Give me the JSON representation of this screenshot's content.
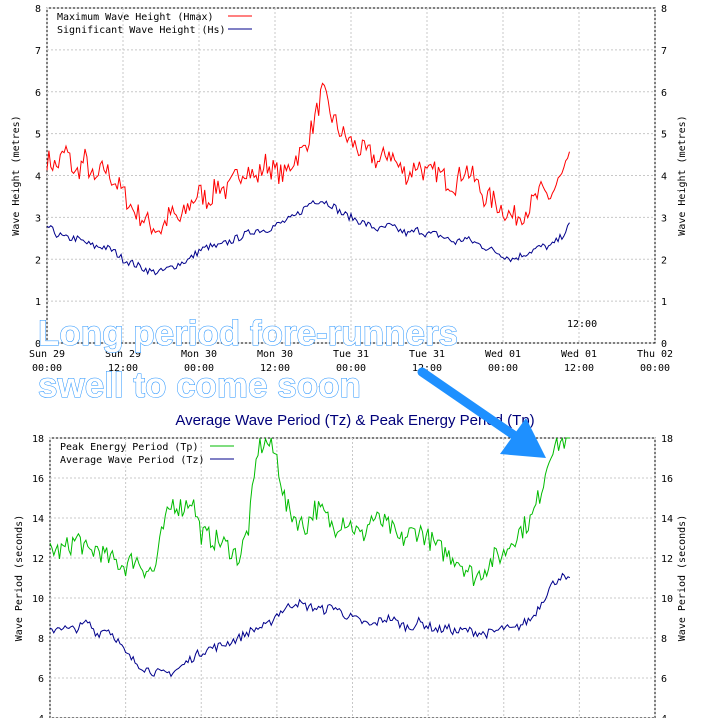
{
  "chart_data": [
    {
      "type": "line",
      "ylabel": "Wave Height (metres)",
      "ylabel_right": "Wave Height (metres)",
      "ylim": [
        0,
        8
      ],
      "yticks": [
        0,
        1,
        2,
        3,
        4,
        5,
        6,
        7,
        8
      ],
      "x_ticks": [
        {
          "day": "Sun 29",
          "time": "00:00"
        },
        {
          "day": "Sun 29",
          "time": "12:00"
        },
        {
          "day": "Mon 30",
          "time": "00:00"
        },
        {
          "day": "Mon 30",
          "time": "12:00"
        },
        {
          "day": "Tue 31",
          "time": "00:00"
        },
        {
          "day": "Tue 31",
          "time": "12:00"
        },
        {
          "day": "Wed 01",
          "time": "00:00"
        },
        {
          "day": "Wed 01",
          "time": "12:00"
        },
        {
          "day": "Thu 02",
          "time": "00:00"
        }
      ],
      "grid": true,
      "legend_position": "top-left",
      "series": [
        {
          "name": "Maximum Wave Height (Hmax)",
          "color": "#ff0000",
          "x_hours": [
            0,
            3,
            6,
            9,
            12,
            15,
            18,
            21,
            24,
            27,
            30,
            33,
            36,
            39,
            42,
            45,
            48,
            51,
            54,
            57,
            60,
            63,
            66,
            69,
            72,
            75,
            78,
            81,
            84,
            87,
            90,
            93,
            96,
            99,
            102,
            105,
            108,
            111,
            114,
            117,
            120,
            123,
            126,
            129,
            132,
            135,
            138,
            141,
            144,
            147,
            150,
            153,
            156,
            159,
            162,
            165
          ],
          "values": [
            4.4,
            4.2,
            4.6,
            4.0,
            4.4,
            3.8,
            4.2,
            3.9,
            3.6,
            3.2,
            3.0,
            2.8,
            2.7,
            3.1,
            2.9,
            3.3,
            3.6,
            3.4,
            3.8,
            3.6,
            4.0,
            4.2,
            3.9,
            4.3,
            4.1,
            4.0,
            4.4,
            4.6,
            5.2,
            6.0,
            5.4,
            5.0,
            4.8,
            4.6,
            4.5,
            4.3,
            4.6,
            4.2,
            4.0,
            4.3,
            4.0,
            4.1,
            3.9,
            3.8,
            4.2,
            3.9,
            3.5,
            3.4,
            3.2,
            3.0,
            3.1,
            3.3,
            3.6,
            3.5,
            3.9,
            4.3
          ]
        },
        {
          "name": "Significant Wave Height (Hs)",
          "color": "#00008b",
          "x_hours": [
            0,
            3,
            6,
            9,
            12,
            15,
            18,
            21,
            24,
            27,
            30,
            33,
            36,
            39,
            42,
            45,
            48,
            51,
            54,
            57,
            60,
            63,
            66,
            69,
            72,
            75,
            78,
            81,
            84,
            87,
            90,
            93,
            96,
            99,
            102,
            105,
            108,
            111,
            114,
            117,
            120,
            123,
            126,
            129,
            132,
            135,
            138,
            141,
            144,
            147,
            150,
            153,
            156,
            159,
            162,
            165
          ],
          "values": [
            2.8,
            2.6,
            2.5,
            2.5,
            2.4,
            2.3,
            2.3,
            2.2,
            2.0,
            1.9,
            1.8,
            1.7,
            1.7,
            1.8,
            1.9,
            2.0,
            2.2,
            2.3,
            2.3,
            2.4,
            2.5,
            2.6,
            2.7,
            2.7,
            2.8,
            2.9,
            3.0,
            3.2,
            3.4,
            3.4,
            3.3,
            3.1,
            3.0,
            2.9,
            2.8,
            2.7,
            2.8,
            2.7,
            2.6,
            2.7,
            2.6,
            2.6,
            2.5,
            2.4,
            2.5,
            2.4,
            2.3,
            2.2,
            2.1,
            2.0,
            2.1,
            2.2,
            2.3,
            2.3,
            2.5,
            2.8
          ]
        }
      ]
    },
    {
      "type": "line",
      "title": "Average Wave Period (Tz) & Peak Energy Period (Tp)",
      "ylabel": "Wave Period (seconds)",
      "ylabel_right": "Wave Period (seconds)",
      "ylim": [
        4,
        18
      ],
      "yticks": [
        4,
        6,
        8,
        10,
        12,
        14,
        16,
        18
      ],
      "grid": true,
      "legend_position": "top-left",
      "series": [
        {
          "name": "Peak Energy Period (Tp)",
          "color": "#00bb00",
          "x_hours": [
            0,
            3,
            6,
            9,
            12,
            15,
            18,
            21,
            24,
            27,
            30,
            33,
            36,
            39,
            42,
            45,
            48,
            51,
            54,
            57,
            60,
            63,
            66,
            69,
            72,
            75,
            78,
            81,
            84,
            87,
            90,
            93,
            96,
            99,
            102,
            105,
            108,
            111,
            114,
            117,
            120,
            123,
            126,
            129,
            132,
            135,
            138,
            141,
            144,
            147,
            150,
            153,
            156,
            159,
            162,
            165
          ],
          "values": [
            12.5,
            12.3,
            12.6,
            13.0,
            12.2,
            12.5,
            12.0,
            11.8,
            11.6,
            12.0,
            11.5,
            11.3,
            13.5,
            14.8,
            14.5,
            15.0,
            13.2,
            13.0,
            12.8,
            12.5,
            12.0,
            13.5,
            17.5,
            17.8,
            17.0,
            14.5,
            14.0,
            13.5,
            14.5,
            14.2,
            13.5,
            14.0,
            13.6,
            13.0,
            14.0,
            13.8,
            13.5,
            12.8,
            13.2,
            13.4,
            13.0,
            12.5,
            12.2,
            12.0,
            11.5,
            11.0,
            11.5,
            12.0,
            12.2,
            13.0,
            13.5,
            14.0,
            15.5,
            17.5,
            17.8,
            18.0
          ]
        },
        {
          "name": "Average Wave Period (Tz)",
          "color": "#00008b",
          "x_hours": [
            0,
            3,
            6,
            9,
            12,
            15,
            18,
            21,
            24,
            27,
            30,
            33,
            36,
            39,
            42,
            45,
            48,
            51,
            54,
            57,
            60,
            63,
            66,
            69,
            72,
            75,
            78,
            81,
            84,
            87,
            90,
            93,
            96,
            99,
            102,
            105,
            108,
            111,
            114,
            117,
            120,
            123,
            126,
            129,
            132,
            135,
            138,
            141,
            144,
            147,
            150,
            153,
            156,
            159,
            162,
            165
          ],
          "values": [
            8.3,
            8.6,
            8.4,
            8.5,
            8.8,
            8.2,
            8.5,
            8.0,
            7.2,
            6.8,
            6.5,
            6.3,
            6.2,
            6.3,
            6.6,
            7.0,
            7.3,
            7.5,
            7.6,
            7.8,
            8.0,
            8.3,
            8.5,
            8.6,
            9.2,
            9.5,
            9.8,
            9.6,
            9.5,
            9.4,
            9.6,
            9.2,
            9.0,
            8.8,
            8.6,
            8.9,
            9.0,
            8.7,
            8.5,
            8.8,
            8.6,
            8.4,
            8.5,
            8.3,
            8.4,
            8.3,
            8.2,
            8.3,
            8.5,
            8.4,
            8.7,
            9.0,
            9.8,
            10.6,
            11.1,
            10.8
          ]
        }
      ]
    }
  ],
  "annotation": {
    "line1": "Long period fore-runners",
    "line2": "swell to come soon",
    "arrow_color": "#1e90ff"
  },
  "fragments": {
    "partial_time": "12:00",
    "partial_x_title": "t"
  }
}
